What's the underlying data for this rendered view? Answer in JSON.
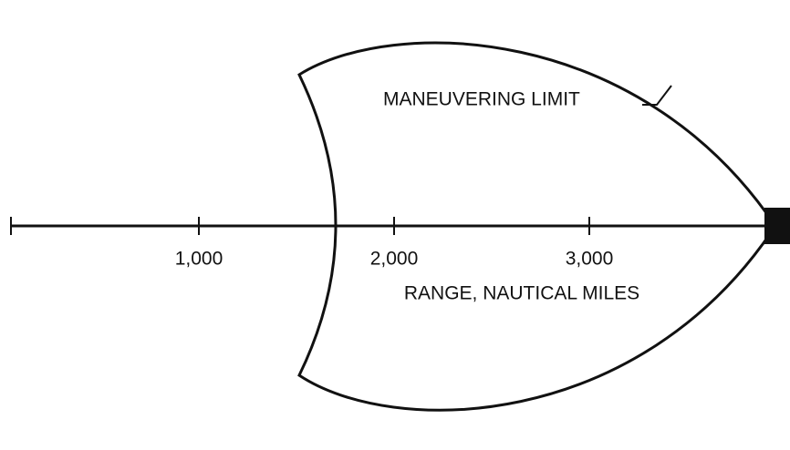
{
  "diagram": {
    "annotation": "MANEUVERING LIMIT",
    "axis": {
      "label": "RANGE, NAUTICAL MILES",
      "xlim": [
        0,
        4000
      ],
      "xticks": [
        {
          "value": 1000,
          "label": "1,000"
        },
        {
          "value": 2000,
          "label": "2,000"
        },
        {
          "value": 3000,
          "label": "3,000"
        }
      ]
    }
  }
}
